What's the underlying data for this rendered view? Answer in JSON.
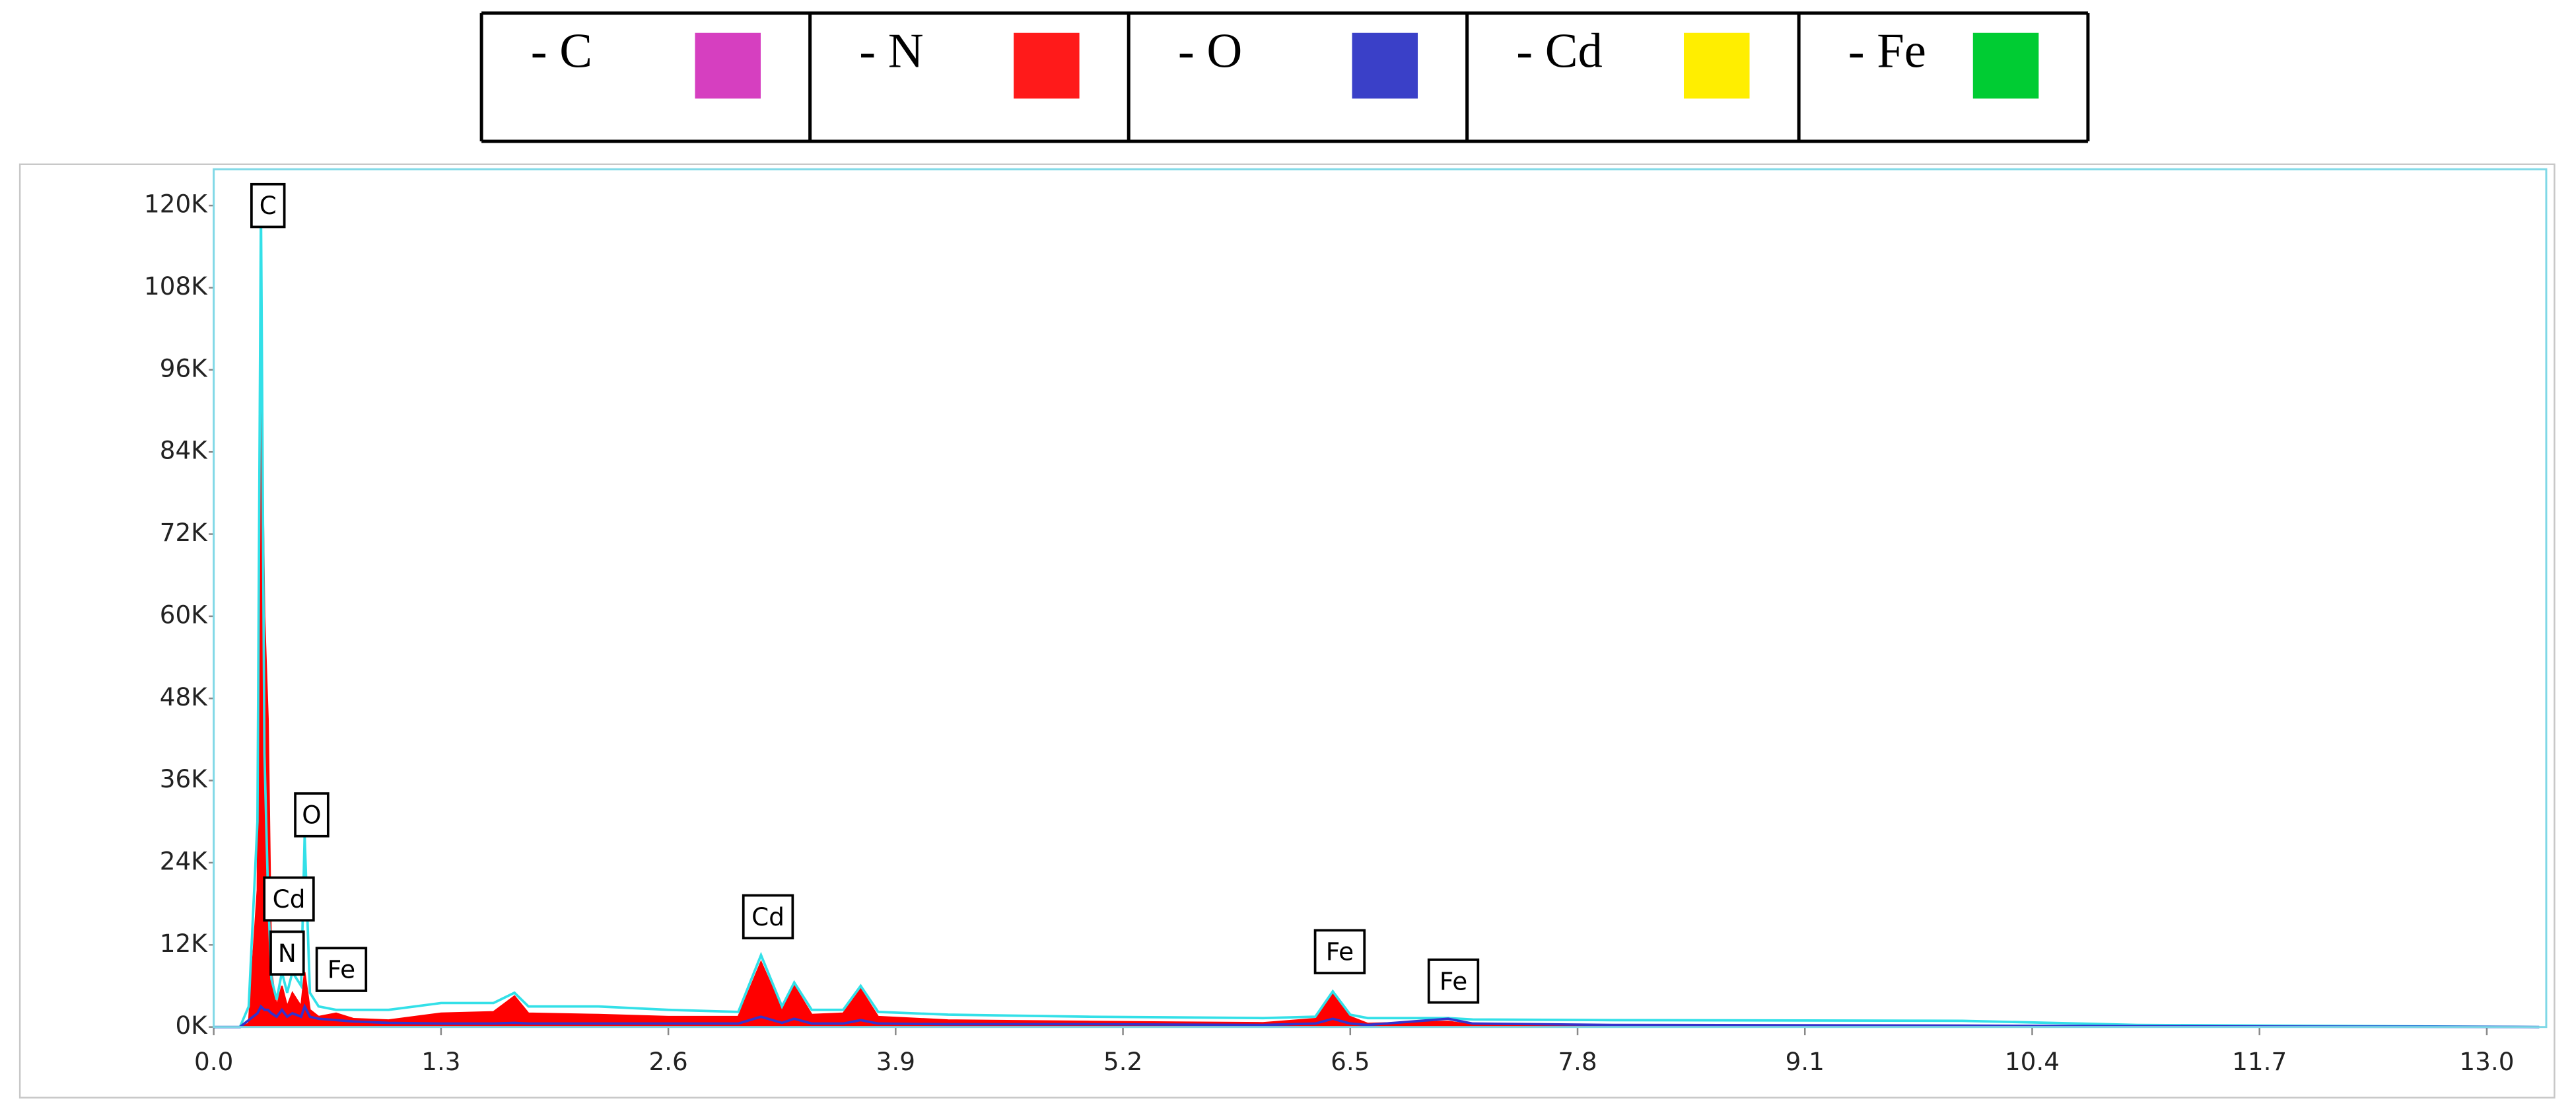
{
  "chart_data": {
    "type": "spectrum",
    "legend": [
      {
        "label": "- C",
        "color": "#d63fc0"
      },
      {
        "label": "- N",
        "color": "#ff1a1a"
      },
      {
        "label": "- O",
        "color": "#3a40c8"
      },
      {
        "label": "- Cd",
        "color": "#ffee00"
      },
      {
        "label": "- Fe",
        "color": "#00cc33"
      }
    ],
    "x": [
      0,
      0.15,
      0.2,
      0.25,
      0.27,
      0.29,
      0.31,
      0.33,
      0.36,
      0.39,
      0.42,
      0.45,
      0.5,
      0.52,
      0.55,
      0.6,
      0.7,
      0.8,
      1.0,
      1.3,
      1.6,
      1.72,
      1.8,
      2.2,
      2.6,
      3.0,
      3.13,
      3.25,
      3.32,
      3.42,
      3.6,
      3.7,
      3.8,
      4.2,
      5.0,
      6.0,
      6.3,
      6.4,
      6.5,
      6.6,
      7.06,
      7.2,
      8.0,
      10.0,
      11.0,
      13.3
    ],
    "series": [
      {
        "color": "#ff0000",
        "fill": true,
        "values": [
          0,
          0,
          500,
          20000,
          102000,
          60000,
          45000,
          8000,
          3000,
          6000,
          3000,
          5000,
          3000,
          8000,
          2500,
          1500,
          2000,
          1200,
          1000,
          2000,
          2200,
          4500,
          2000,
          1800,
          1500,
          1500,
          9500,
          2500,
          6000,
          1800,
          2000,
          5500,
          1500,
          1000,
          800,
          600,
          1200,
          4800,
          1500,
          500,
          800,
          300,
          200,
          100,
          50,
          0
        ]
      },
      {
        "color": "#33e0e8",
        "fill": false,
        "values": [
          0,
          0,
          3000,
          30000,
          120000,
          40000,
          20000,
          7000,
          4000,
          8000,
          5000,
          8000,
          6000,
          28000,
          5000,
          3000,
          2500,
          2500,
          2500,
          3500,
          3500,
          5000,
          3000,
          3000,
          2500,
          2200,
          10500,
          3000,
          6500,
          2500,
          2500,
          6000,
          2200,
          1800,
          1500,
          1300,
          1500,
          5200,
          1800,
          1300,
          1300,
          1100,
          1000,
          900,
          300,
          0
        ]
      },
      {
        "color": "#3333cc",
        "fill": false,
        "values": [
          0,
          0,
          1000,
          2000,
          3000,
          2500,
          2500,
          2000,
          1500,
          2500,
          1500,
          2000,
          1500,
          3000,
          1500,
          1200,
          1000,
          800,
          600,
          500,
          500,
          600,
          500,
          500,
          500,
          500,
          1500,
          600,
          1200,
          500,
          500,
          1000,
          500,
          400,
          400,
          300,
          500,
          1200,
          500,
          300,
          1200,
          500,
          300,
          200,
          100,
          0
        ]
      }
    ],
    "annotations": [
      {
        "text": "C",
        "x": 0.31,
        "y": 120000
      },
      {
        "text": "O",
        "x": 0.56,
        "y": 31000
      },
      {
        "text": "Cd",
        "x": 0.43,
        "y": 18700
      },
      {
        "text": "N",
        "x": 0.42,
        "y": 10800
      },
      {
        "text": "Fe",
        "x": 0.73,
        "y": 8400
      },
      {
        "text": "Cd",
        "x": 3.17,
        "y": 16100
      },
      {
        "text": "Fe",
        "x": 6.44,
        "y": 11000
      },
      {
        "text": "Fe",
        "x": 7.09,
        "y": 6700
      }
    ],
    "xlim": [
      0,
      13.34
    ],
    "ylim": [
      0,
      125300
    ],
    "xticks": [
      {
        "value": 0,
        "label": "0.0"
      },
      1.3,
      2.6,
      3.9,
      5.2,
      6.5,
      7.8,
      9.1,
      10.4,
      11.7,
      {
        "value": 13,
        "label": "13.0"
      }
    ],
    "yticks": [
      {
        "value": 0,
        "label": "0K"
      },
      {
        "value": 12000,
        "label": "12K"
      },
      {
        "value": 24000,
        "label": "24K"
      },
      {
        "value": 36000,
        "label": "36K"
      },
      {
        "value": 48000,
        "label": "48K"
      },
      {
        "value": 60000,
        "label": "60K"
      },
      {
        "value": 72000,
        "label": "72K"
      },
      {
        "value": 84000,
        "label": "84K"
      },
      {
        "value": 96000,
        "label": "96K"
      },
      {
        "value": 108000,
        "label": "108K"
      },
      {
        "value": 120000,
        "label": "120K"
      }
    ],
    "grid": false
  }
}
